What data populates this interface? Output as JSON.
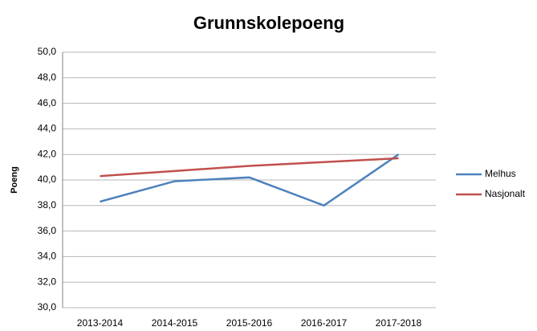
{
  "chart_data": {
    "type": "line",
    "title": "Grunnskolepoeng",
    "y_label": "Poeng",
    "categories": [
      "2013-2014",
      "2014-2015",
      "2015-2016",
      "2016-2017",
      "2017-2018"
    ],
    "series": [
      {
        "name": "Melhus",
        "color": "#4f81bd",
        "values": [
          38.3,
          39.9,
          40.2,
          38.0,
          42.0
        ]
      },
      {
        "name": "Nasjonalt",
        "color": "#c0504d",
        "values": [
          40.3,
          40.7,
          41.1,
          41.4,
          41.7
        ]
      }
    ],
    "ylim": [
      30,
      50
    ],
    "yticks": [
      {
        "value": 30,
        "label": "30,0"
      },
      {
        "value": 32,
        "label": "32,0"
      },
      {
        "value": 34,
        "label": "34,0"
      },
      {
        "value": 36,
        "label": "36,0"
      },
      {
        "value": 38,
        "label": "38,0"
      },
      {
        "value": 40,
        "label": "40,0"
      },
      {
        "value": 42,
        "label": "42,0"
      },
      {
        "value": 44,
        "label": "44,0"
      },
      {
        "value": 46,
        "label": "46,0"
      },
      {
        "value": 48,
        "label": "48,0"
      },
      {
        "value": 50,
        "label": "50,0"
      }
    ],
    "grid": true,
    "legend": "right"
  }
}
